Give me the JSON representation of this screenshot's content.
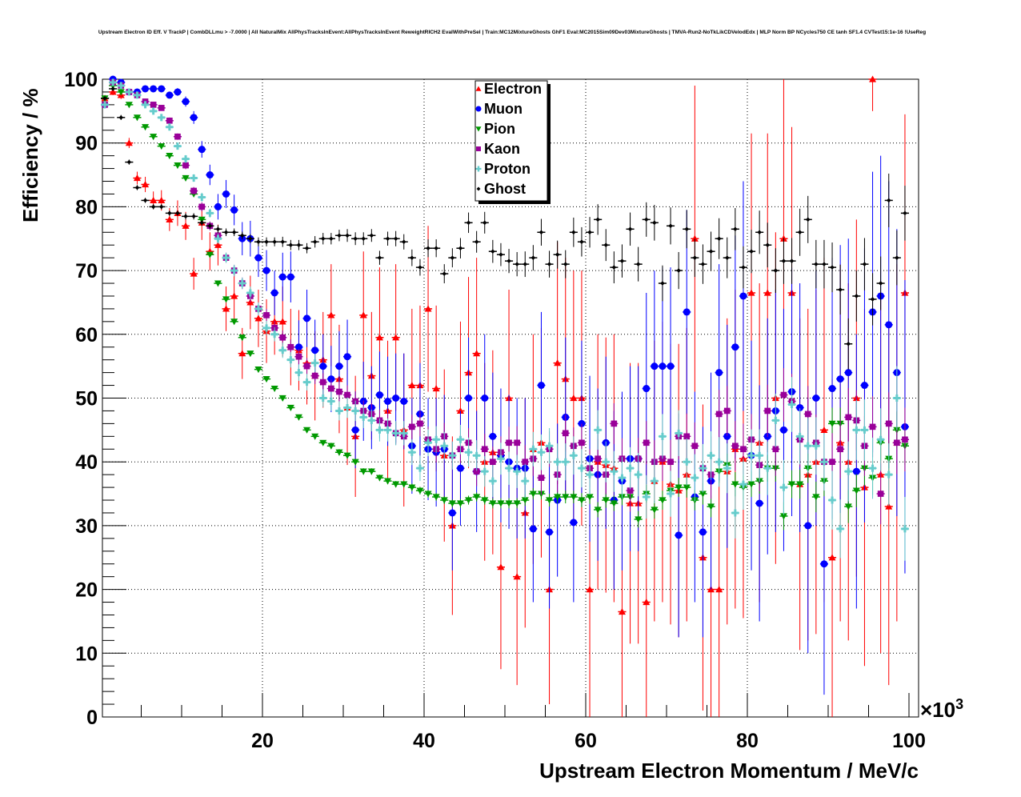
{
  "chart_data": {
    "type": "scatter",
    "title": "Upstream Electron ID Eff. V TrackP | CombDLLmu > -7.0000 | All NaturalMix AllPhysTracksInEvent:AllPhysTracksInEvent ReweightRICH2 EvalWithPreSel | Train:MC12MixtureGhosts GhF1 Eval:MC2015Sim09Dev03MixtureGhosts | TMVA-Run2-NoTkLikCDVelodEdx | MLP Norm BP NCycles750 CE tanh SF1.4 CVTest15:1e-16 !UseReg",
    "xlabel": "Upstream Electron Momentum / MeV/c",
    "ylabel": "Efficiency / %",
    "x_multiplier": "×10",
    "x_multiplier_exp": "3",
    "xlim": [
      0.2,
      101
    ],
    "ylim": [
      0,
      100
    ],
    "x_ticks": [
      20,
      40,
      60,
      80,
      100
    ],
    "y_ticks": [
      0,
      10,
      20,
      30,
      40,
      50,
      60,
      70,
      80,
      90,
      100
    ],
    "grid": true,
    "legend_position": "top-center",
    "bin_width": 1,
    "x_first": 0.5,
    "series": [
      {
        "name": "Electron",
        "color": "#ff0000",
        "marker": "triangle-up",
        "values": [
          97,
          98,
          97.5,
          90,
          84.5,
          83.5,
          81,
          81,
          78,
          79,
          77,
          69.5,
          77.5,
          73,
          74,
          64,
          66,
          57,
          65,
          62.5,
          60.5,
          62,
          62,
          58,
          57.5,
          55.5,
          53.5,
          56,
          63,
          53,
          48.5,
          44,
          63,
          53.5,
          59.5,
          48,
          59.5,
          45,
          52,
          52,
          64,
          51.5,
          41,
          30,
          48,
          54,
          57,
          40,
          41.5,
          23.5,
          50,
          22,
          32,
          42,
          43,
          20,
          55.5,
          53,
          50,
          50,
          20,
          40,
          39.5,
          39,
          16.5,
          33.5,
          33.5,
          18,
          37,
          40,
          36.5,
          35.5,
          38,
          75,
          25,
          20,
          20,
          38.5,
          42,
          40.5,
          66.5,
          43,
          66.5,
          50,
          75,
          66.5,
          36.5,
          38,
          40,
          45,
          25,
          43,
          40,
          50,
          36,
          100,
          38,
          33,
          43,
          66.5
        ],
        "errors": [
          0.5,
          0.5,
          0.6,
          0.8,
          1,
          1.2,
          1.4,
          1.6,
          1.8,
          2,
          2.2,
          2.5,
          2.7,
          3,
          3.2,
          3.5,
          3.8,
          4,
          4.2,
          4.5,
          5,
          5.2,
          5.5,
          6,
          6.3,
          6.5,
          7,
          7.5,
          8,
          8.5,
          9,
          9.5,
          10,
          10,
          11,
          11,
          11.5,
          12,
          12,
          12.5,
          13,
          13,
          13.5,
          14,
          14,
          15,
          15,
          15.5,
          16,
          16,
          17,
          17,
          18,
          18,
          18,
          18,
          19,
          19,
          20,
          20,
          20,
          20,
          20,
          21,
          21,
          22,
          22,
          22,
          22,
          22,
          22,
          23,
          23,
          24,
          24,
          24,
          24,
          24,
          25,
          25,
          25,
          25,
          25,
          26,
          26,
          26,
          26,
          26,
          27,
          27,
          28,
          28,
          28,
          28,
          28,
          5,
          28,
          28,
          28,
          28
        ]
      },
      {
        "name": "Muon",
        "color": "#0000ff",
        "marker": "circle",
        "values": [
          96,
          100,
          99.5,
          98,
          98,
          98.5,
          98.5,
          98.5,
          97.5,
          98,
          96.5,
          94,
          89,
          85,
          80,
          82,
          79.5,
          75,
          75,
          72,
          70,
          66.5,
          69,
          69,
          58,
          62.5,
          57.5,
          55,
          53,
          55,
          56.5,
          45,
          49.5,
          48.5,
          50.5,
          49.5,
          50,
          49.5,
          42.5,
          47.5,
          42,
          41.5,
          42,
          32,
          39,
          50,
          38.5,
          50,
          44,
          41,
          40,
          39,
          39,
          29.5,
          52,
          29,
          34,
          47,
          30.5,
          46,
          40.5,
          38,
          43,
          34,
          37,
          40.5,
          40.5,
          51.5,
          55,
          55,
          55,
          28.5,
          63.5,
          34.5,
          29,
          37,
          54,
          44,
          58,
          66,
          41,
          33.5,
          44,
          48,
          45,
          51,
          48.5,
          30,
          50,
          24,
          51.5,
          53,
          54,
          38.5,
          52,
          63.5,
          66,
          61.5,
          54,
          45.5
        ],
        "errors": [
          0.3,
          0.2,
          0.3,
          0.4,
          0.4,
          0.4,
          0.4,
          0.4,
          0.5,
          0.6,
          0.8,
          1,
          1.3,
          1.6,
          2,
          2.2,
          2.4,
          2.6,
          2.8,
          3,
          3.2,
          3.5,
          3.8,
          4,
          4.2,
          4.5,
          4.8,
          5,
          5.2,
          5.5,
          5.8,
          6,
          6.2,
          6.5,
          6.8,
          7,
          7,
          7.5,
          7.5,
          8,
          8,
          8.5,
          8.5,
          9,
          9,
          9.5,
          9.5,
          10,
          10,
          10.5,
          10.5,
          11,
          11,
          11.5,
          11.5,
          12,
          12,
          12.5,
          12.5,
          13,
          13,
          13.5,
          13.5,
          14,
          14,
          14.5,
          14.5,
          15,
          15,
          15.5,
          15.5,
          16,
          16,
          16.5,
          16.5,
          17,
          17,
          17.5,
          17.5,
          18,
          18,
          18.5,
          18.5,
          19,
          19,
          19.5,
          19.5,
          20,
          20,
          20.5,
          20.5,
          21,
          21,
          21.5,
          21.5,
          22,
          22,
          22.5,
          22.5,
          23
        ]
      },
      {
        "name": "Pion",
        "color": "#009900",
        "marker": "triangle-down",
        "values": [
          97,
          99,
          98,
          96,
          94,
          92.5,
          91,
          89.5,
          88,
          86.5,
          84.5,
          82,
          78,
          72.5,
          68,
          65.5,
          62,
          59.5,
          57,
          54.5,
          53,
          51.5,
          50,
          48.5,
          47,
          45,
          44,
          43,
          42.5,
          41.5,
          41,
          40,
          38.5,
          38.5,
          37.5,
          37,
          36.5,
          36.5,
          36,
          35.5,
          35,
          34.5,
          34,
          33.5,
          33.5,
          34,
          34.5,
          34,
          33.5,
          33.5,
          33.5,
          33.5,
          34,
          35,
          35,
          34,
          34.5,
          34.5,
          34.5,
          34,
          34.5,
          32.5,
          34,
          33.5,
          34.5,
          34.5,
          31,
          35,
          32.5,
          34,
          35.5,
          36,
          36,
          34,
          35,
          33,
          38.5,
          39.5,
          36.5,
          36,
          36.5,
          37,
          39,
          39,
          31.5,
          36.5,
          36.5,
          39,
          34.5,
          37,
          46,
          46,
          33,
          35.5,
          39,
          37.5,
          43,
          40.5,
          45,
          42.5
        ],
        "errors": [
          0.3,
          0.2,
          0.2,
          0.3,
          0.3,
          0.3,
          0.3,
          0.3,
          0.3,
          0.3,
          0.3,
          0.3,
          0.4,
          0.4,
          0.4,
          0.4,
          0.4,
          0.4,
          0.4,
          0.4,
          0.4,
          0.4,
          0.4,
          0.4,
          0.4,
          0.4,
          0.4,
          0.4,
          0.5,
          0.5,
          0.5,
          0.5,
          0.5,
          0.5,
          0.5,
          0.5,
          0.5,
          0.5,
          0.6,
          0.6,
          0.6,
          0.6,
          0.6,
          0.6,
          0.7,
          0.7,
          0.7,
          0.7,
          0.8,
          0.8,
          0.8,
          0.8,
          0.9,
          0.9,
          0.9,
          1,
          1,
          1,
          1,
          1.1,
          1.1,
          1.2,
          1.2,
          1.2,
          1.3,
          1.3,
          1.3,
          1.4,
          1.4,
          1.5,
          1.5,
          1.5,
          1.6,
          1.6,
          1.7,
          1.7,
          1.8,
          1.8,
          1.9,
          1.9,
          2,
          2,
          2.1,
          2.1,
          2.2,
          2.2,
          2.3,
          2.3,
          2.4,
          2.4,
          2.5,
          2.5,
          2.6,
          2.6,
          2.7,
          2.7,
          2.8,
          2.8,
          2.9,
          3
        ]
      },
      {
        "name": "Kaon",
        "color": "#990099",
        "marker": "square",
        "values": [
          96,
          99.5,
          99,
          98,
          97.5,
          96.5,
          96,
          95.5,
          93.5,
          91,
          86.5,
          82.5,
          80,
          77,
          75.5,
          72,
          70,
          68,
          66,
          64,
          63,
          61,
          59.5,
          58,
          56.5,
          55,
          53.5,
          52.5,
          51.5,
          51,
          50.5,
          49.5,
          48,
          47.5,
          46.5,
          46,
          44.5,
          44,
          45.5,
          46,
          43.5,
          42,
          44,
          41,
          42,
          43,
          38.5,
          42,
          40,
          41.5,
          43,
          43,
          40,
          40.5,
          37.5,
          42,
          38,
          44.5,
          42.5,
          43,
          39,
          40.5,
          38,
          46,
          40.5,
          35.5,
          40.5,
          43,
          40,
          40.5,
          40,
          44,
          44,
          42.5,
          39,
          38,
          47.5,
          48,
          42.5,
          42,
          43.5,
          39.5,
          48,
          42,
          50.5,
          49.5,
          43.5,
          47.5,
          43,
          40,
          40,
          42,
          47,
          46.5,
          42.5,
          45.5,
          35,
          46,
          43,
          43.5
        ],
        "errors": [
          0.3,
          0.2,
          0.2,
          0.3,
          0.3,
          0.4,
          0.4,
          0.4,
          0.5,
          0.5,
          0.6,
          0.6,
          0.7,
          0.7,
          0.8,
          0.8,
          0.9,
          0.9,
          1,
          1,
          1,
          1.1,
          1.1,
          1.2,
          1.2,
          1.3,
          1.3,
          1.4,
          1.4,
          1.5,
          1.5,
          1.6,
          1.6,
          1.7,
          1.7,
          1.8,
          1.8,
          1.9,
          1.9,
          2,
          2,
          2.1,
          2.1,
          2.2,
          2.2,
          2.3,
          2.3,
          2.4,
          2.4,
          2.5,
          2.5,
          2.6,
          2.6,
          2.7,
          2.7,
          2.8,
          2.8,
          2.9,
          2.9,
          3,
          3,
          3.1,
          3.1,
          3.2,
          3.2,
          3.3,
          3.3,
          3.4,
          3.4,
          3.5,
          3.5,
          3.6,
          3.6,
          3.7,
          3.7,
          3.8,
          3.8,
          3.9,
          3.9,
          4,
          4,
          4.1,
          4.1,
          4.2,
          4.2,
          4.3,
          4.3,
          4.4,
          4.4,
          4.5,
          4.5,
          4.6,
          4.6,
          4.7,
          4.7,
          4.8,
          4.8,
          4.9,
          4.9,
          5
        ]
      },
      {
        "name": "Proton",
        "color": "#66cccc",
        "marker": "cross",
        "values": [
          96,
          99.5,
          99,
          98,
          97.5,
          96,
          95,
          94,
          92.5,
          89.5,
          87.5,
          84.5,
          81.5,
          79,
          75,
          72,
          70,
          68,
          66.5,
          64,
          61,
          60,
          57.5,
          56,
          54,
          52.5,
          55.5,
          50,
          49.5,
          48,
          48.5,
          48,
          47,
          46.5,
          45,
          45,
          44.5,
          44.5,
          41.5,
          39,
          43,
          43.5,
          42.5,
          41,
          43.5,
          41.5,
          41,
          38.5,
          37,
          40.5,
          39,
          38.5,
          37,
          42,
          41.5,
          42.5,
          40,
          40,
          41,
          39,
          38,
          45,
          40,
          38.5,
          37.5,
          39,
          38,
          34.5,
          37,
          44,
          35,
          44.5,
          40,
          37.5,
          39,
          41,
          40,
          39,
          32,
          36.5,
          41,
          41,
          39,
          46.5,
          36,
          49,
          44,
          42.5,
          42.5,
          40,
          34,
          29.5,
          38.5,
          45,
          45,
          39,
          43.5,
          38,
          50,
          29.5
        ],
        "errors": [
          0.3,
          0.2,
          0.2,
          0.3,
          0.3,
          0.4,
          0.4,
          0.4,
          0.5,
          0.5,
          0.6,
          0.6,
          0.7,
          0.7,
          0.8,
          0.8,
          0.9,
          0.9,
          1,
          1,
          1.1,
          1.1,
          1.2,
          1.2,
          1.3,
          1.3,
          1.4,
          1.4,
          1.5,
          1.5,
          1.6,
          1.6,
          1.7,
          1.7,
          1.8,
          1.8,
          1.9,
          1.9,
          2,
          2,
          2.1,
          2.1,
          2.2,
          2.2,
          2.3,
          2.3,
          2.4,
          2.4,
          2.5,
          2.5,
          2.6,
          2.6,
          2.7,
          2.7,
          2.8,
          2.8,
          2.9,
          2.9,
          3,
          3,
          3.1,
          3.1,
          3.2,
          3.2,
          3.3,
          3.3,
          3.4,
          3.4,
          3.5,
          3.5,
          3.6,
          3.6,
          3.7,
          3.7,
          3.8,
          3.8,
          3.9,
          3.9,
          4,
          4,
          4.1,
          4.1,
          4.2,
          4.2,
          4.3,
          4.3,
          4.4,
          4.4,
          4.5,
          4.5,
          4.6,
          4.6,
          4.7,
          4.7,
          4.8,
          4.8,
          4.9,
          4.9,
          5,
          5
        ]
      },
      {
        "name": "Ghost",
        "color": "#000000",
        "marker": "diamond",
        "values": [
          97,
          98.5,
          94,
          87,
          83,
          81,
          80,
          80,
          79,
          79,
          78.5,
          78.5,
          77.5,
          77,
          76.5,
          76,
          76,
          75.5,
          75,
          74.5,
          74.5,
          74.5,
          74.5,
          74,
          74,
          73.5,
          74.5,
          75,
          75,
          75.5,
          75.5,
          75,
          75,
          75.5,
          72,
          75,
          75,
          74.5,
          72,
          70.5,
          73.5,
          73.5,
          69.5,
          72,
          73.5,
          77.5,
          74.5,
          77.5,
          73,
          72.5,
          71.5,
          71,
          71,
          72,
          76,
          71,
          72.5,
          71,
          76,
          74.5,
          76,
          78,
          74,
          70.5,
          71.5,
          76.5,
          71,
          78,
          77.5,
          68,
          77,
          70,
          76.5,
          72,
          71,
          73,
          75,
          72,
          76.5,
          70.5,
          73,
          76,
          74,
          70,
          71.5,
          71.5,
          76,
          78,
          71,
          71,
          70.5,
          67,
          58.5,
          66,
          71,
          65.5,
          68,
          81,
          72,
          79
        ],
        "errors": [
          0.3,
          0.3,
          0.4,
          0.4,
          0.4,
          0.4,
          0.4,
          0.4,
          0.4,
          0.4,
          0.5,
          0.5,
          0.5,
          0.5,
          0.6,
          0.6,
          0.6,
          0.6,
          0.7,
          0.7,
          0.7,
          0.7,
          0.8,
          0.8,
          0.8,
          0.8,
          0.9,
          0.9,
          0.9,
          0.9,
          1,
          1,
          1,
          1,
          1.1,
          1.1,
          1.2,
          1.2,
          1.3,
          1.3,
          1.4,
          1.4,
          1.5,
          1.5,
          1.6,
          1.6,
          1.7,
          1.7,
          1.8,
          1.8,
          1.9,
          1.9,
          2,
          2,
          2.1,
          2.1,
          2.2,
          2.2,
          2.3,
          2.3,
          2.4,
          2.4,
          2.5,
          2.5,
          2.6,
          2.6,
          2.7,
          2.7,
          2.8,
          2.8,
          2.9,
          2.9,
          3,
          3,
          3.1,
          3.1,
          3.2,
          3.2,
          3.3,
          3.3,
          3.4,
          3.4,
          3.5,
          3.5,
          3.6,
          3.6,
          3.7,
          3.7,
          3.8,
          3.8,
          3.9,
          3.9,
          4,
          4,
          4.1,
          4.1,
          4.2,
          4.2,
          4.3,
          4.3
        ]
      }
    ]
  }
}
